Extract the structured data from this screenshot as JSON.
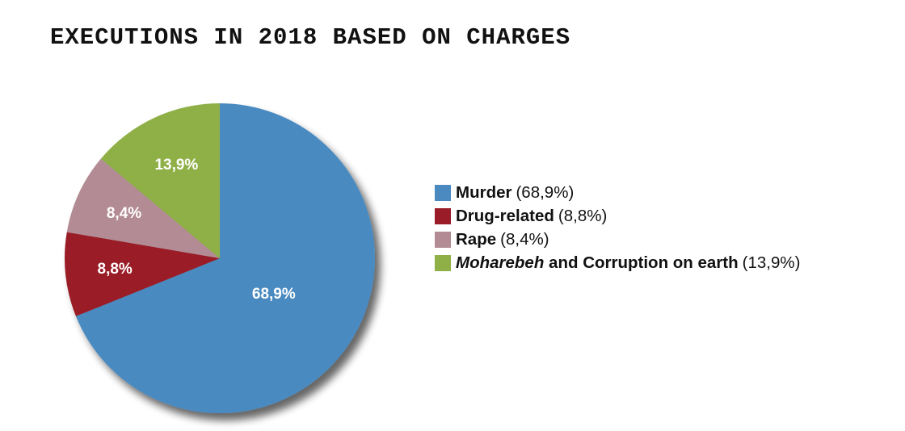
{
  "chart_data": {
    "type": "pie",
    "title": "EXECUTIONS IN 2018 BASED ON CHARGES",
    "slices": [
      {
        "name": "Murder",
        "value": 68.9,
        "label": "68,9%",
        "legend_pct": "(68,9%)",
        "color": "#4a8ac0"
      },
      {
        "name": "Drug-related",
        "value": 8.8,
        "label": "8,8%",
        "legend_pct": "(8,8%)",
        "color": "#9a1c28"
      },
      {
        "name": "Rape",
        "value": 8.4,
        "label": "8,4%",
        "legend_pct": "(8,4%)",
        "color": "#b28b94"
      },
      {
        "name": "Moharebeh",
        "name_suffix": " and Corruption on earth",
        "value": 13.9,
        "label": "13,9%",
        "legend_pct": "(13,9%)",
        "color": "#8fb046"
      }
    ],
    "legend_position": "right",
    "start": "12 o'clock",
    "direction": "clockwise"
  }
}
